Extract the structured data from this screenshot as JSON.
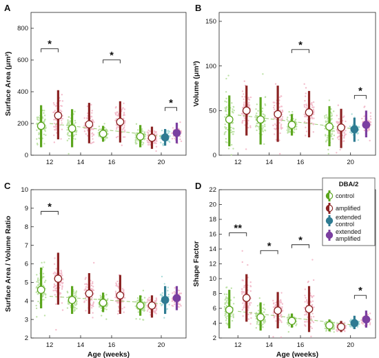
{
  "colors": {
    "control": "#5aa51c",
    "amplified": "#8b2323",
    "extended_control": "#2e7b92",
    "extended_amplified": "#7b3fa0",
    "control_dots": "#a9d98a",
    "amplified_dots": "#f0a8bc",
    "extended_dots": "#8fd3cf",
    "trend": "#9fce7a"
  },
  "legend": {
    "title": "DBA/2",
    "items": [
      {
        "label": "control",
        "key": "control",
        "icon": "half-circle-green-icon"
      },
      {
        "label": "amplified",
        "key": "amplified",
        "icon": "half-circle-red-icon"
      },
      {
        "label": "extended\ncontrol",
        "key": "extended_control",
        "icon": "circle-teal-icon"
      },
      {
        "label": "extended\namplified",
        "key": "extended_amplified",
        "icon": "circle-purple-icon"
      }
    ]
  },
  "chart_data": [
    {
      "panel": "A",
      "type": "scatter",
      "ylabel": "Surface Area (μm²)",
      "xlabel": "",
      "ylim": [
        0,
        900
      ],
      "yticks": [
        0,
        200,
        400,
        600,
        800
      ],
      "xticks": [
        "12",
        "14",
        "16",
        "20"
      ],
      "series": [
        {
          "group": "control",
          "age": 12,
          "mean": 185,
          "lower": 50,
          "upper": 315
        },
        {
          "group": "amplified",
          "age": 12,
          "mean": 250,
          "lower": 100,
          "upper": 410
        },
        {
          "group": "control",
          "age": 14,
          "mean": 168,
          "lower": 50,
          "upper": 290
        },
        {
          "group": "amplified",
          "age": 14,
          "mean": 195,
          "lower": 75,
          "upper": 330
        },
        {
          "group": "control",
          "age": 16,
          "mean": 135,
          "lower": 85,
          "upper": 185
        },
        {
          "group": "amplified",
          "age": 16,
          "mean": 210,
          "lower": 80,
          "upper": 340
        },
        {
          "group": "control",
          "age": 20,
          "mean": 118,
          "lower": 50,
          "upper": 190
        },
        {
          "group": "amplified",
          "age": 20,
          "mean": 110,
          "lower": 40,
          "upper": 180
        },
        {
          "group": "extended_control",
          "age": 20,
          "mean": 112,
          "lower": 60,
          "upper": 165
        },
        {
          "group": "extended_amplified",
          "age": 20,
          "mean": 140,
          "lower": 75,
          "upper": 205
        }
      ],
      "trend": [
        {
          "age": 12,
          "value": 200
        },
        {
          "age": 20,
          "value": 120
        }
      ],
      "significance": [
        {
          "age": 12,
          "label": "*"
        },
        {
          "age": 16,
          "label": "*"
        },
        {
          "age": 20,
          "label": "*"
        }
      ]
    },
    {
      "panel": "B",
      "type": "scatter",
      "ylabel": "Volume (μm³)",
      "xlabel": "",
      "ylim": [
        0,
        160
      ],
      "yticks": [
        0,
        50,
        100,
        150
      ],
      "xticks": [
        "12",
        "14",
        "16",
        "20"
      ],
      "series": [
        {
          "group": "control",
          "age": 12,
          "mean": 40,
          "lower": 10,
          "upper": 67
        },
        {
          "group": "amplified",
          "age": 12,
          "mean": 50,
          "lower": 22,
          "upper": 78
        },
        {
          "group": "control",
          "age": 14,
          "mean": 40,
          "lower": 12,
          "upper": 65
        },
        {
          "group": "amplified",
          "age": 14,
          "mean": 46,
          "lower": 15,
          "upper": 78
        },
        {
          "group": "control",
          "age": 16,
          "mean": 34,
          "lower": 22,
          "upper": 46
        },
        {
          "group": "amplified",
          "age": 16,
          "mean": 48,
          "lower": 20,
          "upper": 72
        },
        {
          "group": "control",
          "age": 20,
          "mean": 32,
          "lower": 10,
          "upper": 55
        },
        {
          "group": "amplified",
          "age": 20,
          "mean": 31,
          "lower": 8,
          "upper": 52
        },
        {
          "group": "extended_control",
          "age": 20,
          "mean": 29,
          "lower": 15,
          "upper": 42
        },
        {
          "group": "extended_amplified",
          "age": 20,
          "mean": 34,
          "lower": 20,
          "upper": 50
        }
      ],
      "trend": [
        {
          "age": 12,
          "value": 45
        },
        {
          "age": 20,
          "value": 30
        }
      ],
      "significance": [
        {
          "age": 16,
          "label": "*"
        },
        {
          "age": 20,
          "label": "*"
        }
      ]
    },
    {
      "panel": "C",
      "type": "scatter",
      "ylabel": "Surface Area / Volume Ratio",
      "xlabel": "Age (weeks)",
      "ylim": [
        2,
        10
      ],
      "yticks": [
        2,
        3,
        4,
        5,
        6,
        7,
        8,
        9,
        10
      ],
      "xticks": [
        "12",
        "14",
        "16",
        "20"
      ],
      "series": [
        {
          "group": "control",
          "age": 12,
          "mean": 4.6,
          "lower": 3.6,
          "upper": 5.8
        },
        {
          "group": "amplified",
          "age": 12,
          "mean": 5.2,
          "lower": 3.8,
          "upper": 6.6
        },
        {
          "group": "control",
          "age": 14,
          "mean": 4.05,
          "lower": 3.3,
          "upper": 4.8
        },
        {
          "group": "amplified",
          "age": 14,
          "mean": 4.4,
          "lower": 3.3,
          "upper": 5.5
        },
        {
          "group": "control",
          "age": 16,
          "mean": 3.9,
          "lower": 3.4,
          "upper": 4.45
        },
        {
          "group": "amplified",
          "age": 16,
          "mean": 4.3,
          "lower": 3.3,
          "upper": 5.4
        },
        {
          "group": "control",
          "age": 20,
          "mean": 3.75,
          "lower": 3.2,
          "upper": 4.3
        },
        {
          "group": "amplified",
          "age": 20,
          "mean": 3.75,
          "lower": 3.1,
          "upper": 4.3
        },
        {
          "group": "extended_control",
          "age": 20,
          "mean": 4.05,
          "lower": 3.3,
          "upper": 4.8
        },
        {
          "group": "extended_amplified",
          "age": 20,
          "mean": 4.15,
          "lower": 3.5,
          "upper": 4.8
        }
      ],
      "trend": [
        {
          "age": 12,
          "value": 4.25
        },
        {
          "age": 20,
          "value": 3.85
        }
      ],
      "significance": [
        {
          "age": 12,
          "label": "*"
        }
      ]
    },
    {
      "panel": "D",
      "type": "scatter",
      "ylabel": "Shape Factor",
      "xlabel": "Age (weeks)",
      "ylim": [
        2,
        22
      ],
      "yticks": [
        2,
        4,
        6,
        8,
        10,
        12,
        14,
        16,
        18,
        20,
        22
      ],
      "xticks": [
        "12",
        "14",
        "16",
        "20"
      ],
      "series": [
        {
          "group": "control",
          "age": 12,
          "mean": 5.8,
          "lower": 3.3,
          "upper": 8.5
        },
        {
          "group": "amplified",
          "age": 12,
          "mean": 7.4,
          "lower": 4.2,
          "upper": 10.6
        },
        {
          "group": "control",
          "age": 14,
          "mean": 4.8,
          "lower": 3.0,
          "upper": 6.8
        },
        {
          "group": "amplified",
          "age": 14,
          "mean": 5.7,
          "lower": 3.3,
          "upper": 8.2
        },
        {
          "group": "control",
          "age": 16,
          "mean": 4.3,
          "lower": 3.4,
          "upper": 5.3
        },
        {
          "group": "amplified",
          "age": 16,
          "mean": 5.9,
          "lower": 2.8,
          "upper": 9.0
        },
        {
          "group": "control",
          "age": 20,
          "mean": 3.7,
          "lower": 2.9,
          "upper": 4.5
        },
        {
          "group": "amplified",
          "age": 20,
          "mean": 3.5,
          "lower": 2.8,
          "upper": 4.3
        },
        {
          "group": "extended_control",
          "age": 20,
          "mean": 4.0,
          "lower": 3.2,
          "upper": 5.0
        },
        {
          "group": "extended_amplified",
          "age": 20,
          "mean": 4.5,
          "lower": 3.4,
          "upper": 5.7
        }
      ],
      "trend": [
        {
          "age": 12,
          "value": 5.6
        },
        {
          "age": 20,
          "value": 3.8
        }
      ],
      "significance": [
        {
          "age": 12,
          "label": "**"
        },
        {
          "age": 14,
          "label": "*"
        },
        {
          "age": 16,
          "label": "*"
        },
        {
          "age": 20,
          "label": "*"
        }
      ]
    }
  ]
}
